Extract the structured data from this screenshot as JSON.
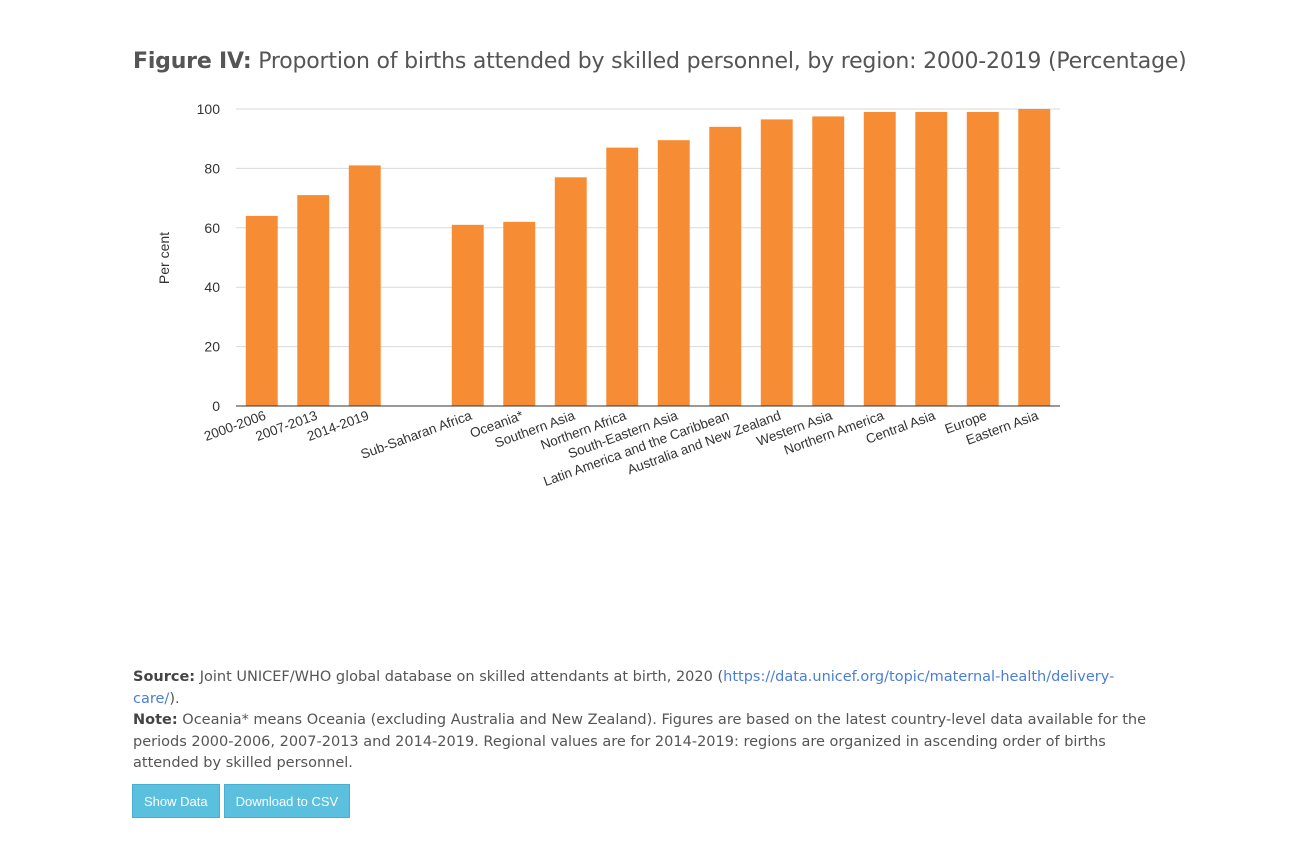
{
  "figure": {
    "title_lead": "Figure IV:",
    "title_rest": "Proportion of births attended by skilled personnel, by region: 2000-2019 (Percentage)"
  },
  "chart_data": {
    "type": "bar",
    "title": "Figure IV: Proportion of births attended by skilled personnel, by region: 2000-2019 (Percentage)",
    "xlabel": "",
    "ylabel": "Per cent",
    "ylim": [
      0,
      100
    ],
    "yticks": [
      0,
      20,
      40,
      60,
      80,
      100
    ],
    "grid": true,
    "legend": "none",
    "bar_color": "#f68c33",
    "categories": [
      "2000-2006",
      "2007-2013",
      "2014-2019",
      "",
      "Sub-Saharan Africa",
      "Oceania*",
      "Southern Asia",
      "Northern Africa",
      "South-Eastern Asia",
      "Latin America and the Caribbean",
      "Australia and New Zealand",
      "Western Asia",
      "Northern America",
      "Central Asia",
      "Europe",
      "Eastern Asia"
    ],
    "values": [
      64,
      71,
      81,
      null,
      61,
      62,
      77,
      87,
      89.5,
      94,
      96.5,
      97.5,
      99,
      99,
      99,
      100
    ]
  },
  "notes": {
    "source_label": "Source:",
    "source_text": "Joint UNICEF/WHO global database on skilled attendants at birth, 2020 (",
    "source_link": "https://data.unicef.org/topic/maternal-health/delivery-care/",
    "source_end": ").",
    "note_label": "Note:",
    "note_text": "Oceania* means Oceania (excluding Australia and New Zealand). Figures are based on the latest country-level data available for the periods 2000-2006, 2007-2013 and 2014-2019. Regional values are for 2014-2019: regions are organized in ascending order of births attended by skilled personnel."
  },
  "buttons": {
    "show_data": "Show Data",
    "download_csv": "Download to CSV"
  }
}
